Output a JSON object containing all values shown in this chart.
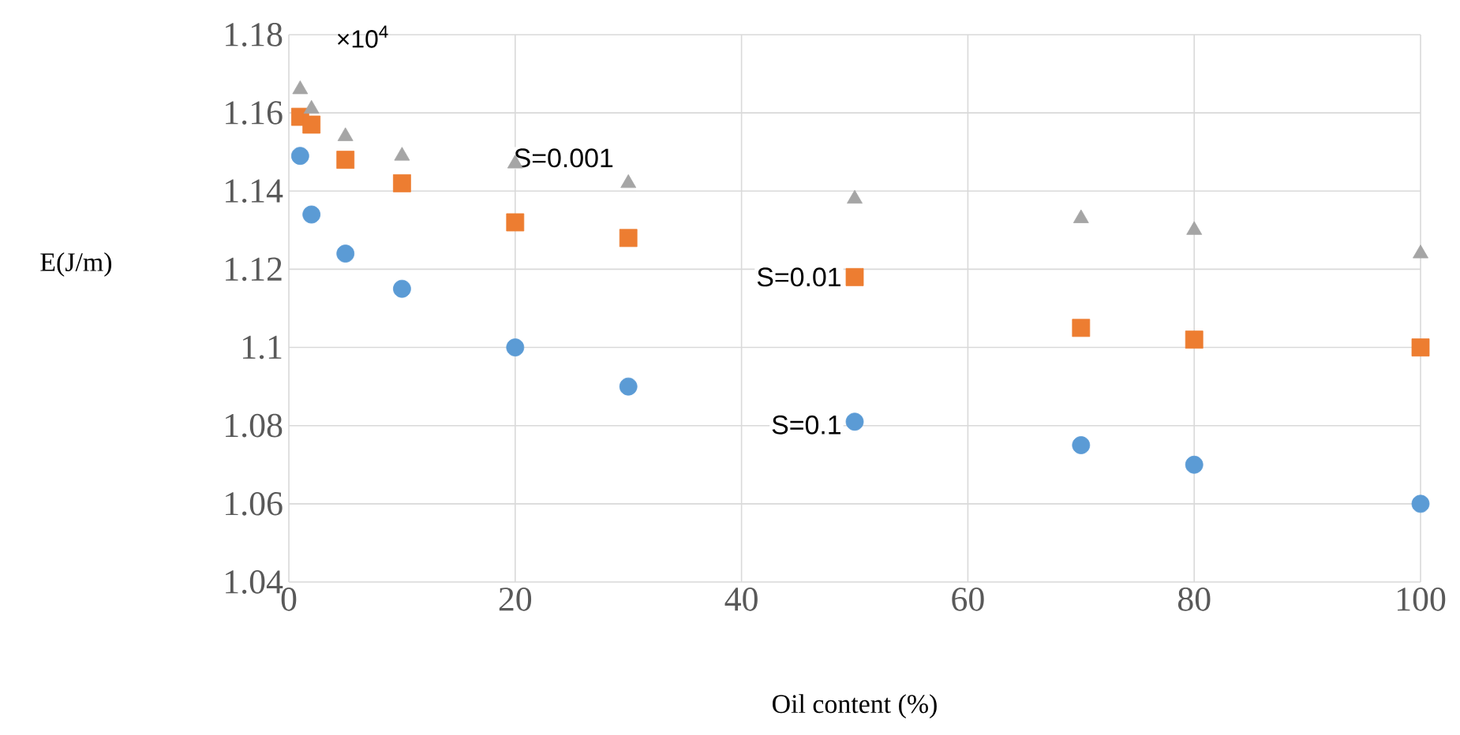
{
  "chart_data": {
    "type": "scatter",
    "xlabel": "Oil content (%)",
    "ylabel": "E(J/m)",
    "annotations": [
      "×10$^{4}$"
    ],
    "xlim": [
      0,
      100
    ],
    "ylim": [
      1.04,
      1.18
    ],
    "xticks": [
      0,
      20,
      40,
      60,
      80,
      100
    ],
    "yticks": [
      1.04,
      1.06,
      1.08,
      1.1,
      1.12,
      1.14,
      1.16,
      1.18
    ],
    "grid": true,
    "series": [
      {
        "name": "S=0.1",
        "color": "#5b9bd5",
        "marker": "circle",
        "x": [
          1,
          2,
          5,
          10,
          20,
          30,
          50,
          70,
          80,
          100
        ],
        "values": [
          1.149,
          1.134,
          1.124,
          1.115,
          1.1,
          1.09,
          1.081,
          1.075,
          1.07,
          1.06
        ]
      },
      {
        "name": "S=0.01",
        "color": "#ed7d31",
        "marker": "square",
        "x": [
          1,
          2,
          5,
          10,
          20,
          30,
          50,
          70,
          80,
          100
        ],
        "values": [
          1.159,
          1.157,
          1.148,
          1.142,
          1.132,
          1.128,
          1.118,
          1.105,
          1.102,
          1.1
        ]
      },
      {
        "name": "S=0.001",
        "color": "#a5a5a5",
        "marker": "triangle",
        "x": [
          1,
          2,
          5,
          10,
          20,
          30,
          50,
          70,
          80,
          100
        ],
        "values": [
          1.166,
          1.161,
          1.154,
          1.149,
          1.147,
          1.142,
          1.138,
          1.133,
          1.13,
          1.124
        ]
      }
    ]
  }
}
